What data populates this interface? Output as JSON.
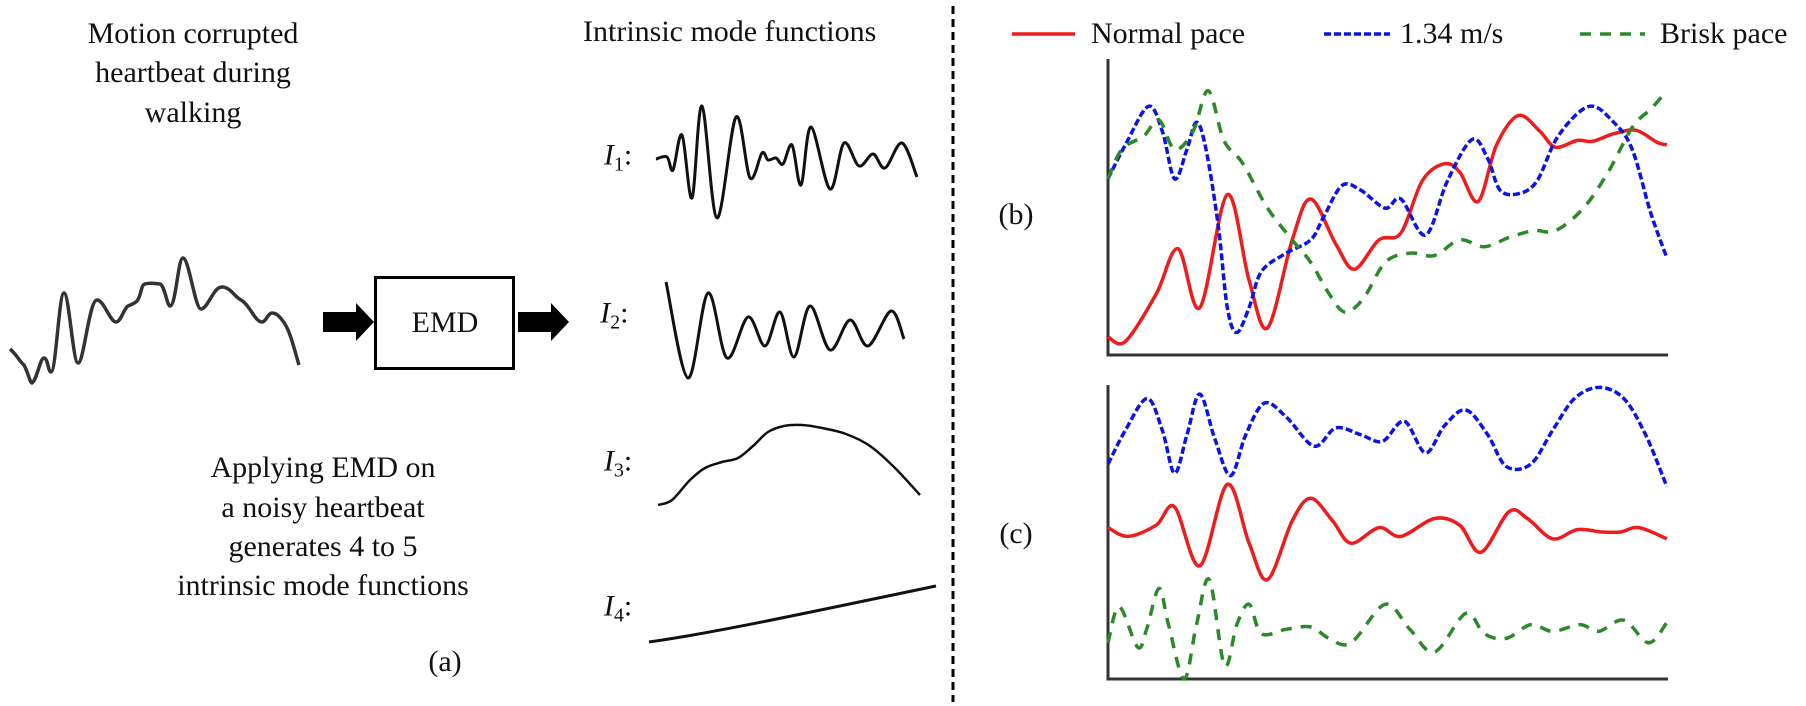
{
  "panel_a": {
    "input_title": [
      "Motion corrupted",
      "heartbeat during",
      "walking"
    ],
    "imf_title": "Intrinsic mode functions",
    "emd_box_label": "EMD",
    "imfs": [
      {
        "symbol": "I",
        "subscript": "1",
        "sep": ":"
      },
      {
        "symbol": "I",
        "subscript": "2",
        "sep": ":"
      },
      {
        "symbol": "I",
        "subscript": "3",
        "sep": ":"
      },
      {
        "symbol": "I",
        "subscript": "4",
        "sep": ":"
      }
    ],
    "caption": [
      "Applying EMD on",
      "a noisy heartbeat",
      "generates 4 to 5",
      "intrinsic mode functions"
    ],
    "panel_label": "(a)",
    "line_color": "#111111"
  },
  "legend": [
    {
      "label": "Normal pace",
      "color": "#ee1c1c",
      "style": "solid"
    },
    {
      "label": "1.34 m/s",
      "color": "#0a14e6",
      "style": "dash-dot"
    },
    {
      "label": "Brisk pace",
      "color": "#2a8a2a",
      "style": "dashed"
    }
  ],
  "chart_data": [
    {
      "type": "line",
      "panel_label": "(b)",
      "xlim": [
        0,
        100
      ],
      "ylim": [
        0,
        100
      ],
      "grid": false,
      "series": [
        {
          "name": "Normal pace",
          "x": [
            0,
            3.1,
            8.6,
            12.5,
            16.4,
            21.3,
            25.2,
            28.5,
            32.9,
            36.2,
            40.7,
            44.0,
            48.4,
            52.3,
            56.1,
            60.0,
            62.8,
            66.1,
            69.4,
            73.3,
            77.1,
            79.9,
            83.8,
            86.5,
            90.4,
            94.3,
            98.1,
            99.8
          ],
          "y": [
            6.1,
            4.6,
            20.6,
            35.9,
            16.0,
            54.2,
            25.2,
            9.2,
            38.9,
            52.7,
            37.4,
            29.0,
            38.9,
            41.2,
            58.8,
            64.6,
            61.8,
            51.9,
            71.0,
            80.9,
            75.6,
            70.2,
            72.5,
            72.2,
            74.8,
            75.9,
            71.8,
            71.0
          ]
        },
        {
          "name": "1.34 m/s",
          "x": [
            0,
            3.1,
            7.2,
            9.7,
            11.9,
            14.1,
            15.8,
            17.5,
            19.7,
            21.3,
            23.0,
            25.2,
            27.4,
            31.8,
            36.2,
            38.5,
            41.8,
            45.1,
            49.5,
            52.3,
            56.7,
            60.6,
            65.0,
            67.8,
            70.0,
            73.3,
            76.6,
            80.4,
            85.9,
            90.3,
            93.6,
            96.9,
            99.8
          ],
          "y": [
            59.5,
            71.0,
            84.0,
            75.6,
            59.5,
            69.5,
            78.6,
            69.5,
            43.5,
            16.0,
            7.6,
            16.0,
            28.2,
            34.4,
            38.9,
            46.6,
            57.3,
            55.7,
            49.6,
            52.7,
            40.5,
            58.8,
            72.8,
            66.4,
            55.7,
            54.5,
            58.8,
            74.0,
            84.0,
            78.6,
            69.5,
            48.1,
            32.8
          ]
        },
        {
          "name": "Brisk pace",
          "x": [
            0,
            2.5,
            6.4,
            9.1,
            11.9,
            15.2,
            17.9,
            20.7,
            24.0,
            28.5,
            32.9,
            36.2,
            39.5,
            42.3,
            45.6,
            49.5,
            53.9,
            58.3,
            62.8,
            67.2,
            71.6,
            76.0,
            79.9,
            84.9,
            89.3,
            93.7,
            97.0,
            99.8
          ],
          "y": [
            59.5,
            69.5,
            74.0,
            79.4,
            69.5,
            75.6,
            89.3,
            72.5,
            64.9,
            49.6,
            38.9,
            31.3,
            20.6,
            14.5,
            19.1,
            31.3,
            34.4,
            33.6,
            38.9,
            36.6,
            39.7,
            42.0,
            42.0,
            49.6,
            61.8,
            77.1,
            83.2,
            89.3
          ]
        }
      ]
    },
    {
      "type": "line",
      "panel_label": "(c)",
      "xlim": [
        0,
        100
      ],
      "ylim": [
        0,
        100
      ],
      "grid": false,
      "series": [
        {
          "name": "1.34 m/s",
          "x": [
            0,
            3.1,
            7.0,
            9.7,
            11.9,
            14.1,
            16.4,
            19.1,
            21.9,
            24.6,
            27.9,
            31.8,
            36.8,
            40.7,
            45.1,
            49.0,
            52.9,
            56.7,
            60.1,
            63.9,
            67.8,
            71.1,
            75.5,
            79.4,
            83.3,
            87.7,
            92.1,
            96.0,
            99.8
          ],
          "y": [
            73.1,
            84.6,
            95.4,
            84.6,
            70.0,
            83.1,
            96.9,
            81.5,
            69.2,
            83.1,
            93.8,
            89.2,
            79.2,
            85.4,
            83.1,
            80.8,
            87.7,
            76.9,
            86.2,
            91.5,
            83.1,
            72.3,
            73.1,
            84.6,
            95.4,
            99.2,
            95.4,
            83.1,
            65.4
          ]
        },
        {
          "name": "Normal pace",
          "x": [
            0,
            3.6,
            8.6,
            11.9,
            16.4,
            21.3,
            25.2,
            28.5,
            32.9,
            36.2,
            40.1,
            43.4,
            48.4,
            52.3,
            58.3,
            62.8,
            66.6,
            71.6,
            74.9,
            79.4,
            83.8,
            88.2,
            91.5,
            94.8,
            99.8
          ],
          "y": [
            51.5,
            48.5,
            52.3,
            58.5,
            38.5,
            66.2,
            46.2,
            33.8,
            53.8,
            61.5,
            53.8,
            46.2,
            51.5,
            48.5,
            54.6,
            52.3,
            43.1,
            56.9,
            54.6,
            47.7,
            50.8,
            50.0,
            50.0,
            51.5,
            47.7
          ]
        },
        {
          "name": "Brisk pace",
          "x": [
            0,
            2.0,
            5.3,
            6.9,
            9.1,
            10.8,
            13.6,
            15.8,
            18.1,
            20.8,
            23.0,
            25.2,
            27.4,
            31.8,
            36.2,
            39.5,
            43.4,
            49.5,
            53.9,
            58.3,
            63.9,
            67.2,
            71.1,
            75.5,
            79.4,
            84.3,
            87.6,
            92.1,
            96.5,
            99.8
          ],
          "y": [
            12.3,
            24.6,
            10.8,
            16.9,
            30.8,
            18.5,
            0,
            18.5,
            33.8,
            4.6,
            18.5,
            25.4,
            15.4,
            16.9,
            17.7,
            13.8,
            12.3,
            25.4,
            16.9,
            9.2,
            22.3,
            15.4,
            13.8,
            18.5,
            16.2,
            18.5,
            16.2,
            20.0,
            12.3,
            19.2
          ]
        }
      ]
    }
  ]
}
